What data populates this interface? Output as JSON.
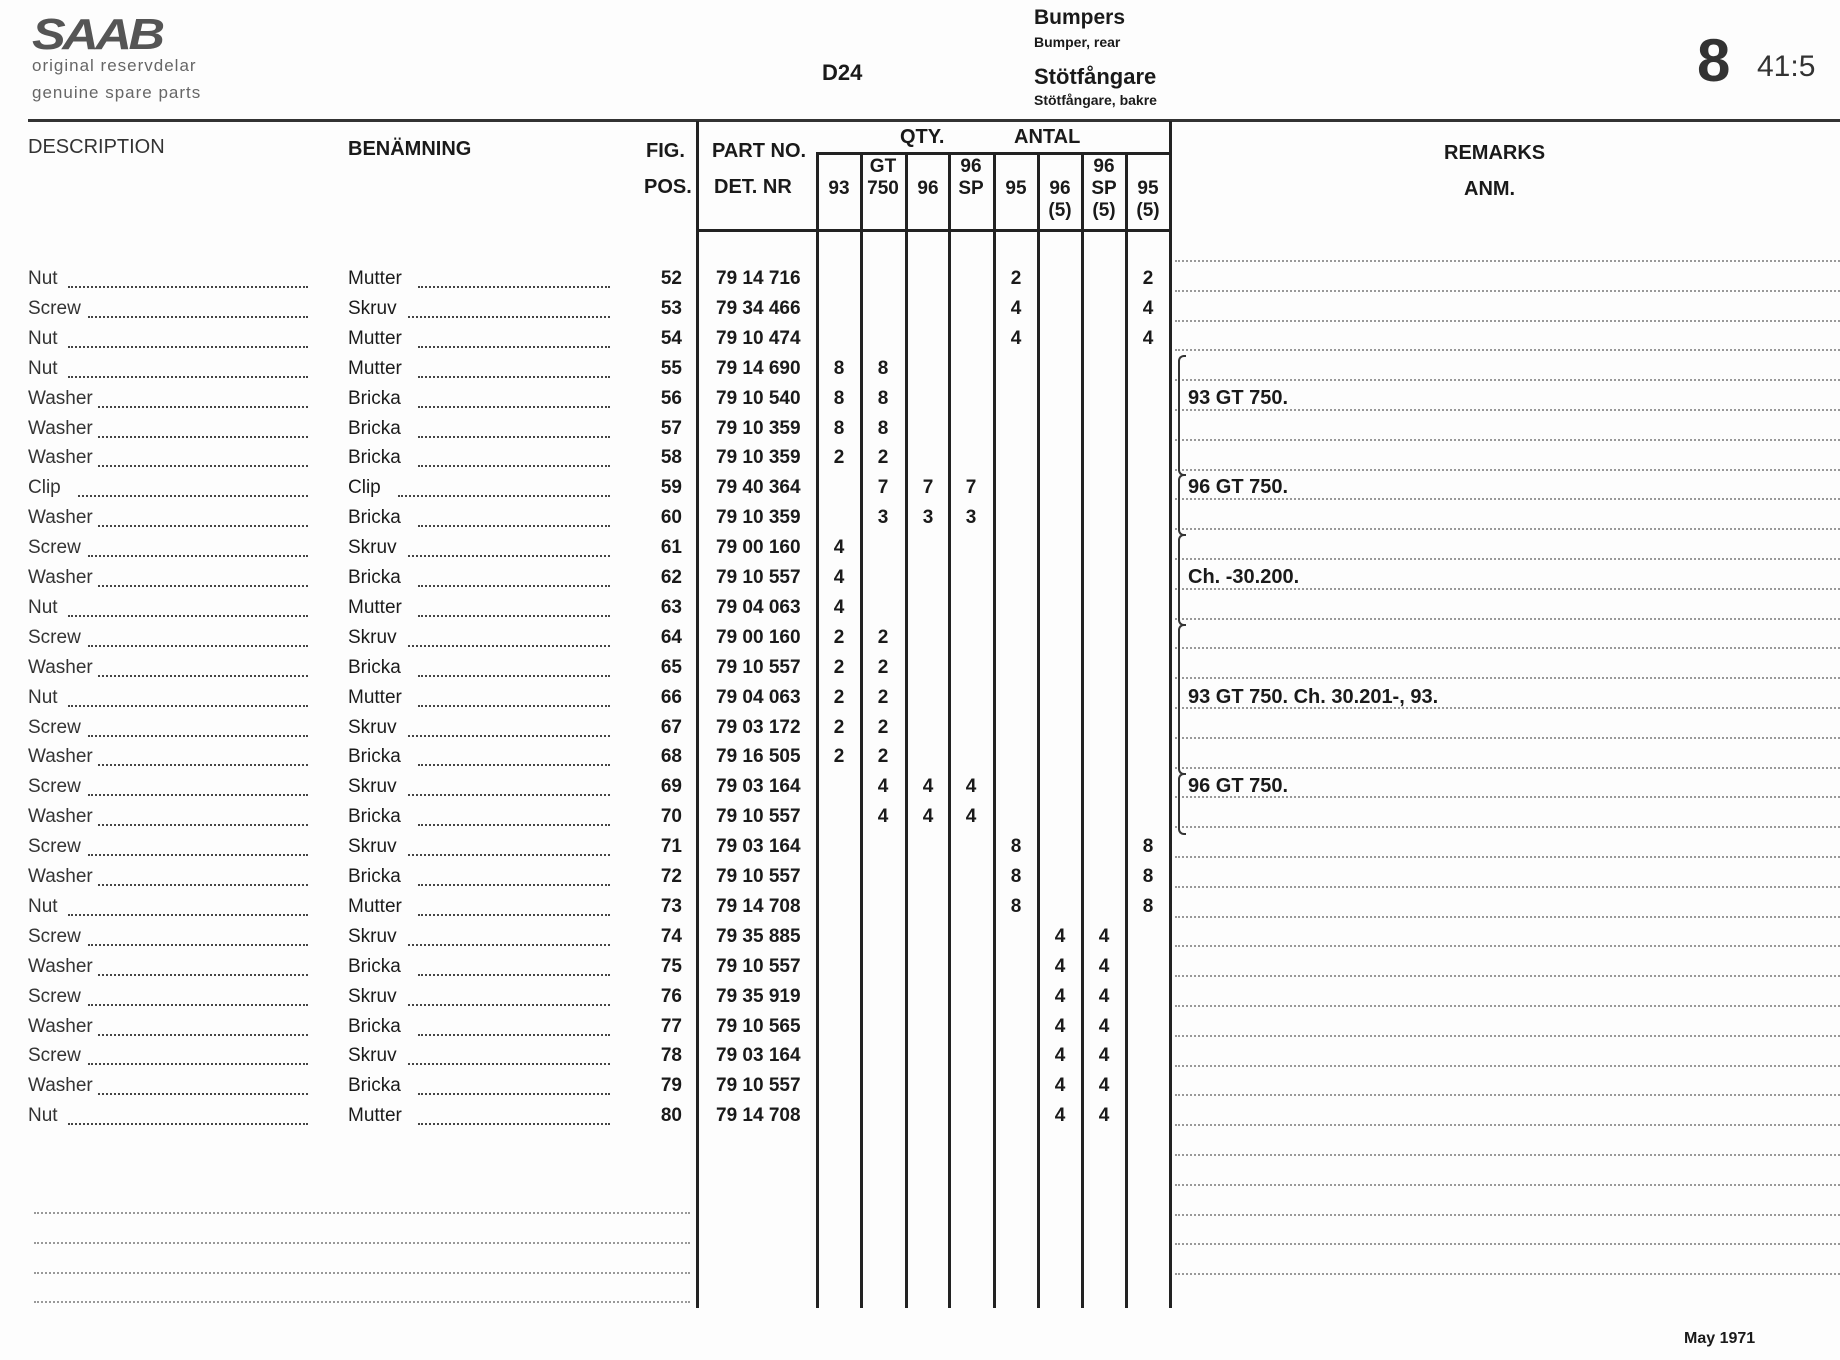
{
  "header": {
    "logo": "SAAB",
    "tagline_sv": "original reservdelar",
    "tagline_en": "genuine spare parts",
    "model": "D24",
    "group_en": "Bumpers",
    "subgroup_en": "Bumper, rear",
    "group_sv": "Stötfångare",
    "subgroup_sv": "Stötfångare, bakre",
    "section": "8",
    "page": "41:5"
  },
  "columns": {
    "description": "DESCRIPTION",
    "benamning": "BENÄMNING",
    "fig": "FIG.",
    "pos": "POS.",
    "part_no": "PART NO.",
    "det_nr": "DET. NR",
    "qty": "QTY.",
    "antal": "ANTAL",
    "remarks": "REMARKS",
    "anm": "ANM.",
    "qty_columns": [
      {
        "top": "",
        "bottom": "93",
        "sub": ""
      },
      {
        "top": "GT",
        "bottom": "750",
        "sub": ""
      },
      {
        "top": "",
        "bottom": "96",
        "sub": ""
      },
      {
        "top": "96",
        "bottom": "SP",
        "sub": ""
      },
      {
        "top": "",
        "bottom": "95",
        "sub": ""
      },
      {
        "top": "",
        "bottom": "96",
        "sub": "(5)"
      },
      {
        "top": "96",
        "bottom": "SP",
        "sub": "(5)"
      },
      {
        "top": "",
        "bottom": "95",
        "sub": "(5)"
      }
    ]
  },
  "rows": [
    {
      "desc": "Nut",
      "ben": "Mutter",
      "pos": "52",
      "part": "79 14 716",
      "qty": [
        "",
        "",
        "",
        "",
        "2",
        "",
        "",
        "2"
      ]
    },
    {
      "desc": "Screw",
      "ben": "Skruv",
      "pos": "53",
      "part": "79 34 466",
      "qty": [
        "",
        "",
        "",
        "",
        "4",
        "",
        "",
        "4"
      ]
    },
    {
      "desc": "Nut",
      "ben": "Mutter",
      "pos": "54",
      "part": "79 10 474",
      "qty": [
        "",
        "",
        "",
        "",
        "4",
        "",
        "",
        "4"
      ]
    },
    {
      "desc": "Nut",
      "ben": "Mutter",
      "pos": "55",
      "part": "79 14 690",
      "qty": [
        "8",
        "8",
        "",
        "",
        "",
        "",
        "",
        ""
      ]
    },
    {
      "desc": "Washer",
      "ben": "Bricka",
      "pos": "56",
      "part": "79 10 540",
      "qty": [
        "8",
        "8",
        "",
        "",
        "",
        "",
        "",
        ""
      ]
    },
    {
      "desc": "Washer",
      "ben": "Bricka",
      "pos": "57",
      "part": "79 10 359",
      "qty": [
        "8",
        "8",
        "",
        "",
        "",
        "",
        "",
        ""
      ]
    },
    {
      "desc": "Washer",
      "ben": "Bricka",
      "pos": "58",
      "part": "79 10 359",
      "qty": [
        "2",
        "2",
        "",
        "",
        "",
        "",
        "",
        ""
      ]
    },
    {
      "desc": "Clip",
      "ben": "Clip",
      "pos": "59",
      "part": "79 40 364",
      "qty": [
        "",
        "7",
        "7",
        "7",
        "",
        "",
        "",
        ""
      ]
    },
    {
      "desc": "Washer",
      "ben": "Bricka",
      "pos": "60",
      "part": "79 10 359",
      "qty": [
        "",
        "3",
        "3",
        "3",
        "",
        "",
        "",
        ""
      ]
    },
    {
      "desc": "Screw",
      "ben": "Skruv",
      "pos": "61",
      "part": "79 00 160",
      "qty": [
        "4",
        "",
        "",
        "",
        "",
        "",
        "",
        ""
      ]
    },
    {
      "desc": "Washer",
      "ben": "Bricka",
      "pos": "62",
      "part": "79 10 557",
      "qty": [
        "4",
        "",
        "",
        "",
        "",
        "",
        "",
        ""
      ]
    },
    {
      "desc": "Nut",
      "ben": "Mutter",
      "pos": "63",
      "part": "79 04 063",
      "qty": [
        "4",
        "",
        "",
        "",
        "",
        "",
        "",
        ""
      ]
    },
    {
      "desc": "Screw",
      "ben": "Skruv",
      "pos": "64",
      "part": "79 00 160",
      "qty": [
        "2",
        "2",
        "",
        "",
        "",
        "",
        "",
        ""
      ]
    },
    {
      "desc": "Washer",
      "ben": "Bricka",
      "pos": "65",
      "part": "79 10 557",
      "qty": [
        "2",
        "2",
        "",
        "",
        "",
        "",
        "",
        ""
      ]
    },
    {
      "desc": "Nut",
      "ben": "Mutter",
      "pos": "66",
      "part": "79 04 063",
      "qty": [
        "2",
        "2",
        "",
        "",
        "",
        "",
        "",
        ""
      ]
    },
    {
      "desc": "Screw",
      "ben": "Skruv",
      "pos": "67",
      "part": "79 03 172",
      "qty": [
        "2",
        "2",
        "",
        "",
        "",
        "",
        "",
        ""
      ]
    },
    {
      "desc": "Washer",
      "ben": "Bricka",
      "pos": "68",
      "part": "79 16 505",
      "qty": [
        "2",
        "2",
        "",
        "",
        "",
        "",
        "",
        ""
      ]
    },
    {
      "desc": "Screw",
      "ben": "Skruv",
      "pos": "69",
      "part": "79 03 164",
      "qty": [
        "",
        "4",
        "4",
        "4",
        "",
        "",
        "",
        ""
      ]
    },
    {
      "desc": "Washer",
      "ben": "Bricka",
      "pos": "70",
      "part": "79 10 557",
      "qty": [
        "",
        "4",
        "4",
        "4",
        "",
        "",
        "",
        ""
      ]
    },
    {
      "desc": "Screw",
      "ben": "Skruv",
      "pos": "71",
      "part": "79 03 164",
      "qty": [
        "",
        "",
        "",
        "",
        "8",
        "",
        "",
        "8"
      ]
    },
    {
      "desc": "Washer",
      "ben": "Bricka",
      "pos": "72",
      "part": "79 10 557",
      "qty": [
        "",
        "",
        "",
        "",
        "8",
        "",
        "",
        "8"
      ]
    },
    {
      "desc": "Nut",
      "ben": "Mutter",
      "pos": "73",
      "part": "79 14 708",
      "qty": [
        "",
        "",
        "",
        "",
        "8",
        "",
        "",
        "8"
      ]
    },
    {
      "desc": "Screw",
      "ben": "Skruv",
      "pos": "74",
      "part": "79 35 885",
      "qty": [
        "",
        "",
        "",
        "",
        "",
        "4",
        "4",
        ""
      ]
    },
    {
      "desc": "Washer",
      "ben": "Bricka",
      "pos": "75",
      "part": "79 10 557",
      "qty": [
        "",
        "",
        "",
        "",
        "",
        "4",
        "4",
        ""
      ]
    },
    {
      "desc": "Screw",
      "ben": "Skruv",
      "pos": "76",
      "part": "79 35 919",
      "qty": [
        "",
        "",
        "",
        "",
        "",
        "4",
        "4",
        ""
      ]
    },
    {
      "desc": "Washer",
      "ben": "Bricka",
      "pos": "77",
      "part": "79 10 565",
      "qty": [
        "",
        "",
        "",
        "",
        "",
        "4",
        "4",
        ""
      ]
    },
    {
      "desc": "Screw",
      "ben": "Skruv",
      "pos": "78",
      "part": "79 03 164",
      "qty": [
        "",
        "",
        "",
        "",
        "",
        "4",
        "4",
        ""
      ]
    },
    {
      "desc": "Washer",
      "ben": "Bricka",
      "pos": "79",
      "part": "79 10 557",
      "qty": [
        "",
        "",
        "",
        "",
        "",
        "4",
        "4",
        ""
      ]
    },
    {
      "desc": "Nut",
      "ben": "Mutter",
      "pos": "80",
      "part": "79 14 708",
      "qty": [
        "",
        "",
        "",
        "",
        "",
        "4",
        "4",
        ""
      ]
    }
  ],
  "remarks": [
    {
      "from": "55",
      "to": "58",
      "text": "93 GT 750."
    },
    {
      "from": "59",
      "to": "60",
      "text": "96 GT 750."
    },
    {
      "from": "61",
      "to": "63",
      "text": "Ch. -30.200."
    },
    {
      "from": "64",
      "to": "68",
      "text": "93 GT 750.  Ch. 30.201-, 93."
    },
    {
      "from": "69",
      "to": "70",
      "text": "96 GT 750."
    }
  ],
  "footer": {
    "date": "May 1971"
  }
}
